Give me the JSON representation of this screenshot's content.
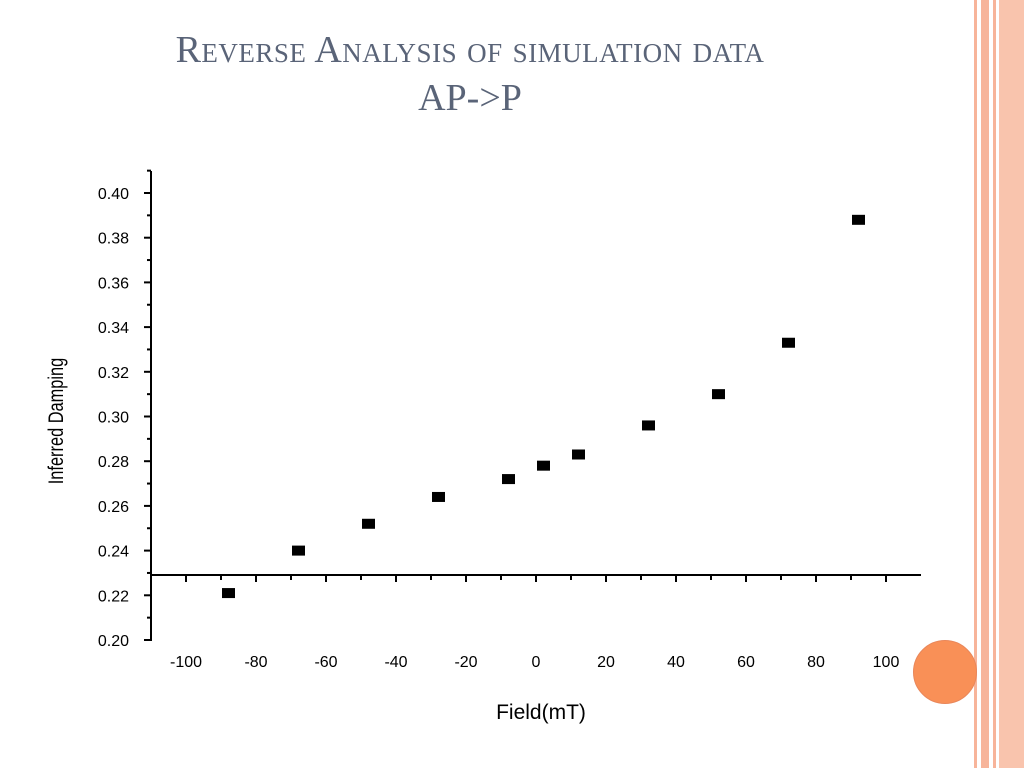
{
  "slide": {
    "title_line1": "Reverse Analysis of simulation data",
    "title_line2": "AP->P",
    "accent_color": "#f99057",
    "stripe_color": "#f7b49a"
  },
  "chart_data": {
    "type": "scatter",
    "title": "",
    "xlabel": "Field(mT)",
    "ylabel": "Inferred Damping",
    "xlim": [
      -100,
      100
    ],
    "ylim": [
      0.2,
      0.4
    ],
    "x_ticks": [
      "-100",
      "-80",
      "-60",
      "-40",
      "-20",
      "0",
      "20",
      "40",
      "60",
      "80",
      "100"
    ],
    "y_ticks": [
      "0.20",
      "0.22",
      "0.24",
      "0.26",
      "0.28",
      "0.30",
      "0.32",
      "0.34",
      "0.36",
      "0.38",
      "0.40"
    ],
    "grid": false,
    "legend": "none",
    "marker_color": "#000000",
    "series": [
      {
        "x": [
          -88,
          -68,
          -48,
          -28,
          -8,
          2,
          12,
          32,
          52,
          72,
          92
        ],
        "y": [
          0.221,
          0.24,
          0.252,
          0.264,
          0.272,
          0.278,
          0.283,
          0.296,
          0.31,
          0.333,
          0.388
        ]
      }
    ]
  }
}
